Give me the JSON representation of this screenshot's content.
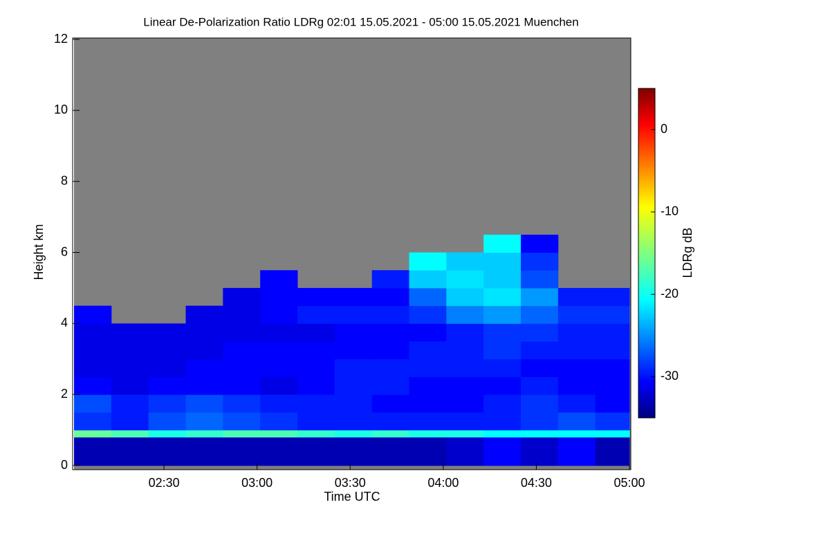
{
  "chart_data": {
    "type": "heatmap",
    "title": "Linear De-Polarization Ratio LDRg   02:01 15.05.2021 - 05:00 15.05.2021 Muenchen",
    "x_label": "Time UTC",
    "y_label": "Height km",
    "colorbar_label": "LDRg dB",
    "xlim": [
      121,
      300
    ],
    "xticks": [
      {
        "value": 150,
        "label": "02:30"
      },
      {
        "value": 180,
        "label": "03:00"
      },
      {
        "value": 210,
        "label": "03:30"
      },
      {
        "value": 240,
        "label": "04:00"
      },
      {
        "value": 270,
        "label": "04:30"
      },
      {
        "value": 300,
        "label": "05:00"
      }
    ],
    "ylim": [
      0,
      12
    ],
    "yticks": [
      0,
      2,
      4,
      6,
      8,
      10,
      12
    ],
    "clim": [
      -35,
      5
    ],
    "cticks": [
      0,
      -10,
      -20,
      -30
    ],
    "colormap": "jet",
    "x_edges": [
      121,
      133,
      145,
      157,
      169,
      181,
      193,
      205,
      217,
      229,
      241,
      253,
      265,
      277,
      289,
      300
    ],
    "y_edges": [
      0,
      0.8,
      1.0,
      1.5,
      2,
      2.5,
      3,
      3.5,
      4,
      4.5,
      5,
      5.5,
      6,
      6.5
    ],
    "z": [
      [
        -33,
        -33,
        -33,
        -33,
        -33,
        -33,
        -33,
        -33,
        -33,
        -33,
        -32,
        -30,
        -32,
        -30,
        -33
      ],
      [
        -16,
        -17,
        -19,
        -18,
        -17,
        -17,
        -18,
        -19,
        -18,
        -19,
        -19,
        -20,
        -20,
        -20,
        -20
      ],
      [
        -28,
        -29,
        -27,
        -26,
        -27,
        -28,
        -29,
        -29,
        -29,
        -29,
        -29,
        -29,
        -28,
        -27,
        -28
      ],
      [
        -27,
        -29,
        -28,
        -27,
        -28,
        -29,
        -29,
        -29,
        -30,
        -30,
        -30,
        -29,
        -28,
        -29,
        -30
      ],
      [
        -30,
        -31,
        -30,
        -30,
        -30,
        -31,
        -30,
        -29,
        -29,
        -30,
        -30,
        -30,
        -29,
        -30,
        -30
      ],
      [
        -31,
        -31,
        -31,
        -30,
        -30,
        -30,
        -30,
        -29,
        -29,
        -29,
        -29,
        -29,
        -30,
        -30,
        -30
      ],
      [
        -31,
        -31,
        -31,
        -31,
        -30,
        -30,
        -30,
        -30,
        -30,
        -29,
        -29,
        -28,
        -29,
        -29,
        -29
      ],
      [
        -31,
        -31,
        -31,
        -31,
        -31,
        -31,
        -31,
        -30,
        -30,
        -30,
        -29,
        -28,
        -28,
        -29,
        -29
      ],
      [
        -30,
        null,
        null,
        -31,
        -31,
        -30,
        -29,
        -29,
        -29,
        -28,
        -25,
        -24,
        -26,
        -28,
        -28
      ],
      [
        null,
        null,
        null,
        null,
        -31,
        -30,
        -30,
        -30,
        -30,
        -26,
        -22,
        -21,
        -24,
        -29,
        -29
      ],
      [
        null,
        null,
        null,
        null,
        null,
        -30,
        null,
        null,
        -29,
        -22,
        -21,
        -22,
        -27,
        null,
        null
      ],
      [
        null,
        null,
        null,
        null,
        null,
        null,
        null,
        null,
        null,
        -20,
        -22,
        -22,
        -28,
        null,
        null
      ],
      [
        null,
        null,
        null,
        null,
        null,
        null,
        null,
        null,
        null,
        null,
        null,
        -20,
        -30,
        null,
        null
      ]
    ]
  }
}
